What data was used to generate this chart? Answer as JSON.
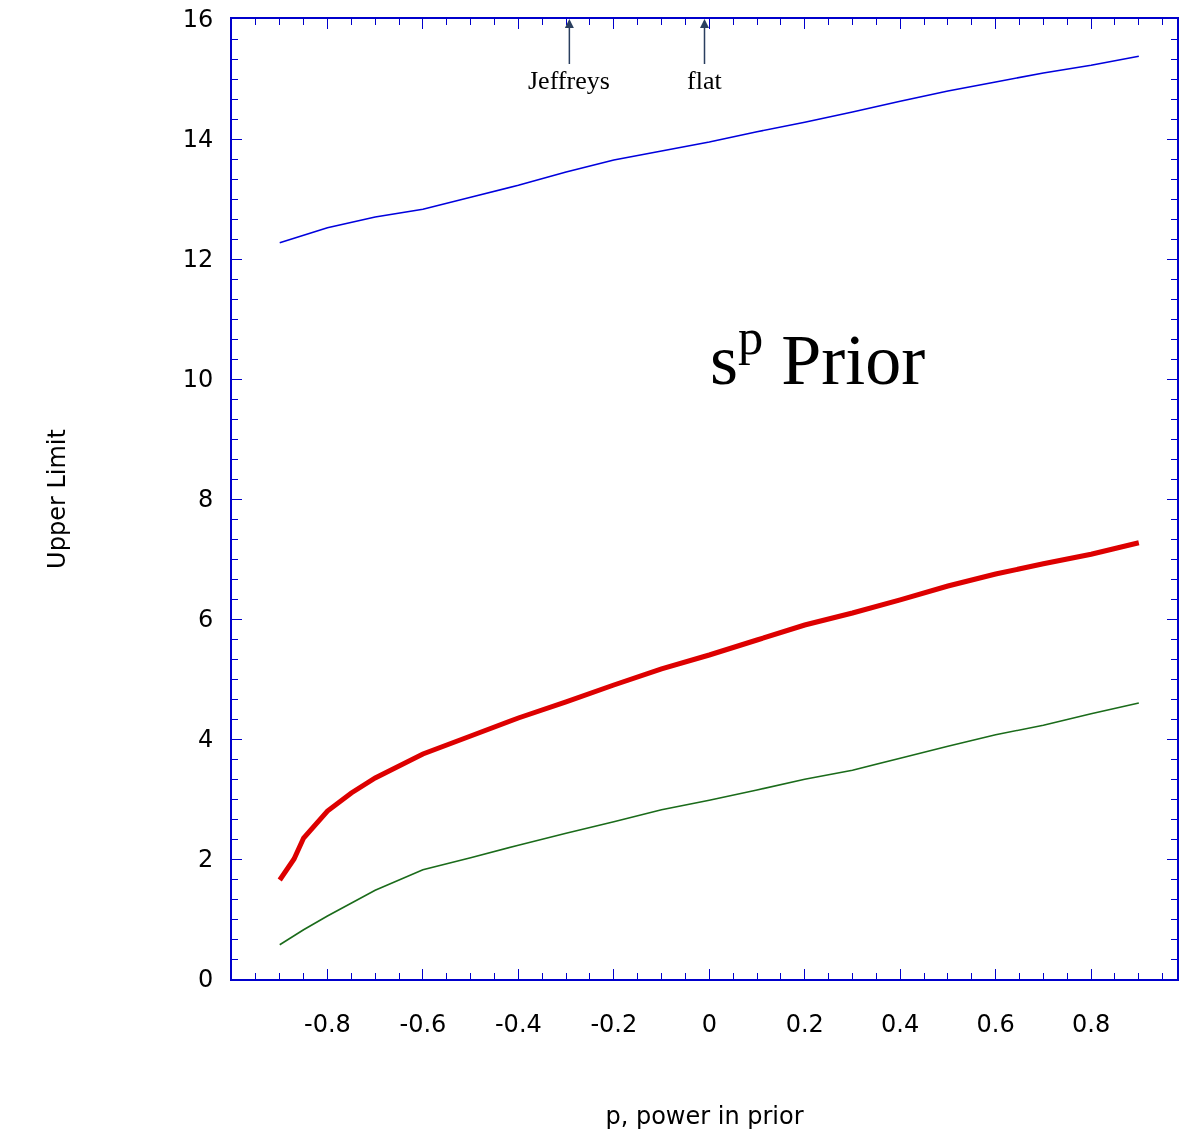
{
  "chart_data": {
    "type": "line",
    "xlabel": "p, power in prior",
    "ylabel": "Upper Limit",
    "xlim": [
      -1.0,
      0.98
    ],
    "ylim": [
      0,
      16
    ],
    "xticks": [
      -0.8,
      -0.6,
      -0.4,
      -0.2,
      0,
      0.2,
      0.4,
      0.6,
      0.8
    ],
    "yticks": [
      0,
      2,
      4,
      6,
      8,
      10,
      12,
      14,
      16
    ],
    "marker": "none",
    "line_style": "solid",
    "series": [
      {
        "color": "#0000dd",
        "x": [
          -0.9,
          -0.8,
          -0.7,
          -0.6,
          -0.5,
          -0.4,
          -0.3,
          -0.2,
          -0.1,
          0,
          0.1,
          0.2,
          0.3,
          0.4,
          0.5,
          0.6,
          0.7,
          0.8,
          0.9
        ],
        "values": [
          12.27,
          12.52,
          12.7,
          12.83,
          13.03,
          13.23,
          13.45,
          13.65,
          13.8,
          13.95,
          14.12,
          14.28,
          14.45,
          14.63,
          14.8,
          14.95,
          15.1,
          15.23,
          15.38
        ]
      },
      {
        "color": "#dd0000",
        "x": [
          -0.9,
          -0.87,
          -0.85,
          -0.8,
          -0.75,
          -0.7,
          -0.6,
          -0.5,
          -0.4,
          -0.3,
          -0.2,
          -0.1,
          0,
          0.1,
          0.2,
          0.3,
          0.4,
          0.5,
          0.6,
          0.7,
          0.8,
          0.9
        ],
        "values": [
          1.65,
          2.0,
          2.35,
          2.8,
          3.1,
          3.35,
          3.75,
          4.05,
          4.35,
          4.62,
          4.9,
          5.17,
          5.4,
          5.65,
          5.9,
          6.1,
          6.32,
          6.55,
          6.75,
          6.92,
          7.08,
          7.27
        ]
      },
      {
        "color": "#1a6b1a",
        "x": [
          -0.9,
          -0.85,
          -0.8,
          -0.7,
          -0.6,
          -0.5,
          -0.4,
          -0.3,
          -0.2,
          -0.1,
          0,
          0.1,
          0.2,
          0.3,
          0.4,
          0.5,
          0.6,
          0.7,
          0.8,
          0.9
        ],
        "values": [
          0.57,
          0.82,
          1.05,
          1.48,
          1.82,
          2.02,
          2.23,
          2.43,
          2.62,
          2.82,
          2.98,
          3.15,
          3.33,
          3.48,
          3.68,
          3.88,
          4.07,
          4.23,
          4.42,
          4.6
        ]
      }
    ],
    "annotations": [
      "Jeffreys",
      "flat",
      "s$^{p}$ Prior"
    ]
  }
}
